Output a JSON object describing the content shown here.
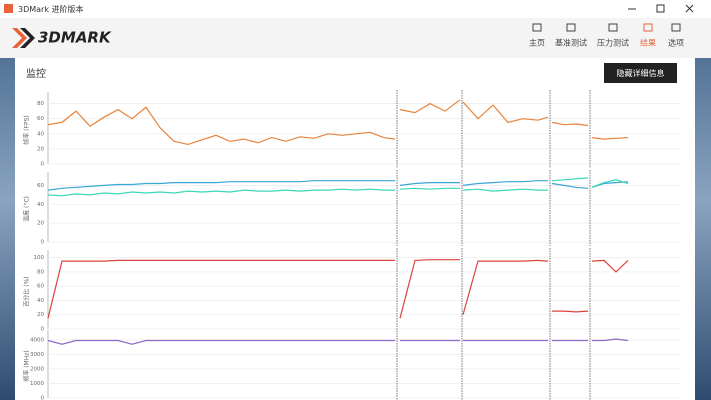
{
  "window": {
    "title": "3DMark 进阶版本"
  },
  "nav": {
    "logo": "3DMARK",
    "items": [
      "主页",
      "基准测试",
      "压力测试",
      "结果",
      "选项"
    ],
    "active": 3
  },
  "section": {
    "title": "监控",
    "button": "隐藏详细信息"
  },
  "chart_data": [
    {
      "type": "line",
      "y_label": "帧率 (FPS)",
      "xlim": [
        0,
        632
      ],
      "ylim": [
        0,
        90
      ],
      "yticks": [
        0,
        20,
        40,
        60,
        80
      ],
      "grid": true,
      "x": [
        0,
        14,
        28,
        42,
        56,
        70,
        84,
        98,
        112,
        126,
        140,
        154,
        168,
        182,
        196,
        210,
        224,
        238,
        252,
        266,
        280,
        294,
        308,
        322,
        336,
        347,
        349,
        352,
        367,
        382,
        397,
        412,
        414,
        415,
        430,
        445,
        460,
        475,
        490,
        500,
        502,
        504,
        516,
        528,
        540,
        542,
        544,
        556,
        568,
        580
      ],
      "series": [
        {
          "color": "#e8833a",
          "values": [
            52,
            55,
            70,
            50,
            62,
            72,
            60,
            75,
            48,
            30,
            26,
            32,
            38,
            30,
            33,
            28,
            35,
            30,
            36,
            34,
            40,
            38,
            40,
            42,
            35,
            33,
            null,
            72,
            68,
            80,
            70,
            85,
            null,
            82,
            60,
            78,
            55,
            60,
            58,
            62,
            null,
            55,
            52,
            53,
            51,
            null,
            35,
            33,
            34,
            35
          ]
        }
      ]
    },
    {
      "type": "line",
      "y_label": "温度 (°C)",
      "xlim": [
        0,
        632
      ],
      "ylim": [
        0,
        70
      ],
      "yticks": [
        0,
        20,
        40,
        60
      ],
      "grid": true,
      "x": [
        0,
        14,
        28,
        42,
        56,
        70,
        84,
        98,
        112,
        126,
        140,
        154,
        168,
        182,
        196,
        210,
        224,
        238,
        252,
        266,
        280,
        294,
        308,
        322,
        336,
        347,
        349,
        352,
        367,
        382,
        397,
        412,
        414,
        415,
        430,
        445,
        460,
        475,
        490,
        500,
        502,
        504,
        516,
        528,
        540,
        542,
        544,
        556,
        568,
        580
      ],
      "series": [
        {
          "color": "#3aa7d8",
          "values": [
            55,
            57,
            58,
            59,
            60,
            61,
            61,
            62,
            62,
            63,
            63,
            63,
            63,
            64,
            64,
            64,
            64,
            64,
            64,
            65,
            65,
            65,
            65,
            65,
            65,
            65,
            null,
            60,
            62,
            63,
            63,
            63,
            null,
            60,
            62,
            63,
            64,
            64,
            65,
            65,
            null,
            62,
            60,
            58,
            57,
            null,
            58,
            62,
            63,
            64
          ]
        },
        {
          "color": "#3ad8b5",
          "values": [
            50,
            49,
            51,
            50,
            52,
            51,
            53,
            52,
            53,
            52,
            54,
            53,
            54,
            53,
            55,
            54,
            54,
            55,
            54,
            55,
            55,
            56,
            55,
            56,
            55,
            55,
            null,
            56,
            57,
            56,
            57,
            57,
            null,
            55,
            56,
            54,
            55,
            56,
            55,
            55,
            null,
            65,
            66,
            67,
            68,
            null,
            58,
            63,
            66,
            62
          ]
        }
      ]
    },
    {
      "type": "line",
      "y_label": "百分比 (%)",
      "xlim": [
        0,
        632
      ],
      "ylim": [
        0,
        105
      ],
      "yticks": [
        0,
        20,
        40,
        60,
        80,
        100
      ],
      "grid": true,
      "x": [
        0,
        14,
        28,
        42,
        56,
        70,
        84,
        98,
        112,
        126,
        140,
        154,
        168,
        182,
        196,
        210,
        224,
        238,
        252,
        266,
        280,
        294,
        308,
        322,
        336,
        347,
        349,
        352,
        367,
        382,
        397,
        412,
        414,
        415,
        430,
        445,
        460,
        475,
        490,
        500,
        502,
        504,
        516,
        528,
        540,
        542,
        544,
        556,
        568,
        580
      ],
      "series": [
        {
          "color": "#d8453a",
          "values": [
            15,
            95,
            95,
            95,
            95,
            96,
            96,
            96,
            96,
            96,
            96,
            96,
            96,
            96,
            96,
            96,
            96,
            96,
            96,
            96,
            96,
            96,
            96,
            96,
            96,
            96,
            null,
            15,
            96,
            97,
            97,
            97,
            null,
            20,
            95,
            95,
            95,
            95,
            96,
            95,
            null,
            25,
            25,
            24,
            25,
            null,
            95,
            96,
            80,
            96
          ]
        }
      ]
    },
    {
      "type": "line",
      "y_label": "频率 (MHz)",
      "xlim": [
        0,
        632
      ],
      "ylim": [
        0,
        4400
      ],
      "yticks": [
        0,
        1000,
        2000,
        3000,
        4000
      ],
      "grid": true,
      "x": [
        0,
        14,
        28,
        42,
        56,
        70,
        84,
        98,
        112,
        126,
        140,
        154,
        168,
        182,
        196,
        210,
        224,
        238,
        252,
        266,
        280,
        294,
        308,
        322,
        336,
        347,
        349,
        352,
        367,
        382,
        397,
        412,
        414,
        415,
        430,
        445,
        460,
        475,
        490,
        500,
        502,
        504,
        516,
        528,
        540,
        542,
        544,
        556,
        568,
        580
      ],
      "series": [
        {
          "color": "#8c6bc8",
          "values": [
            3950,
            3700,
            3950,
            3950,
            3950,
            3950,
            3700,
            3950,
            3950,
            3950,
            3950,
            3950,
            3950,
            3950,
            3950,
            3950,
            3950,
            3950,
            3950,
            3950,
            3950,
            3950,
            3950,
            3950,
            3950,
            3950,
            null,
            3950,
            3950,
            3950,
            3950,
            3950,
            null,
            3950,
            3950,
            3950,
            3950,
            3950,
            3950,
            3950,
            null,
            3950,
            3950,
            3950,
            3950,
            null,
            3950,
            3950,
            4050,
            3950
          ]
        }
      ]
    }
  ]
}
